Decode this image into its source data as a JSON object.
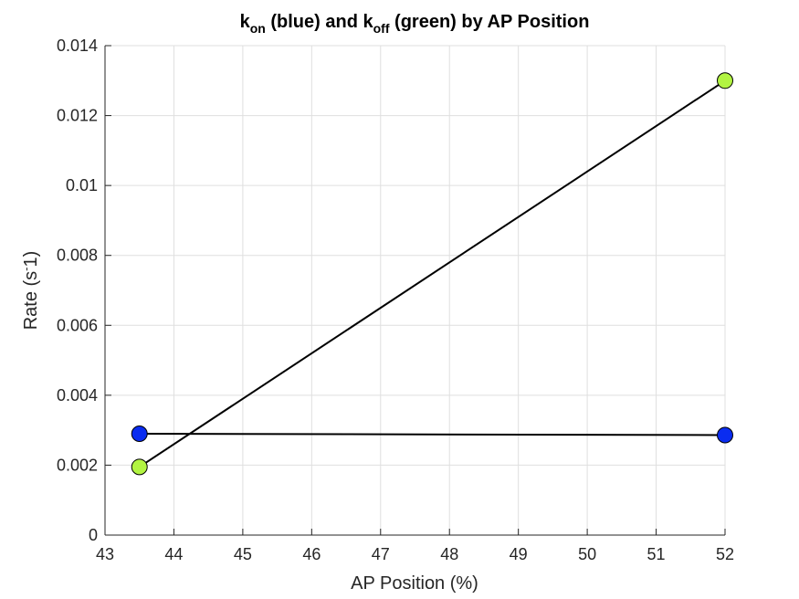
{
  "chart_data": {
    "type": "line",
    "title": {
      "k1": "k",
      "k1_sub": "on",
      "mid": " (blue) and ",
      "k2": "k",
      "k2_sub": "off",
      "end": " (green) by AP Position"
    },
    "xlabel": "AP Position (%)",
    "ylabel": {
      "main": "Rate (s",
      "sup": "-",
      "tail": "1)"
    },
    "xlim": [
      43,
      52
    ],
    "ylim": [
      0,
      0.014
    ],
    "x_ticks": [
      43,
      44,
      45,
      46,
      47,
      48,
      49,
      50,
      51,
      52
    ],
    "y_ticks": [
      0,
      0.002,
      0.004,
      0.006,
      0.008,
      0.01,
      0.012,
      0.014
    ],
    "x_tick_labels": [
      "43",
      "44",
      "45",
      "46",
      "47",
      "48",
      "49",
      "50",
      "51",
      "52"
    ],
    "y_tick_labels": [
      "0",
      "0.002",
      "0.004",
      "0.006",
      "0.008",
      "0.01",
      "0.012",
      "0.014"
    ],
    "grid": true,
    "series": [
      {
        "x": [
          43.5,
          52
        ],
        "y": [
          0.0029,
          0.00286
        ],
        "marker_color": "#0a2cf0",
        "line_color": "#000000"
      },
      {
        "x": [
          43.5,
          52
        ],
        "y": [
          0.00195,
          0.013
        ],
        "marker_color": "#b2f442",
        "line_color": "#000000"
      }
    ]
  }
}
